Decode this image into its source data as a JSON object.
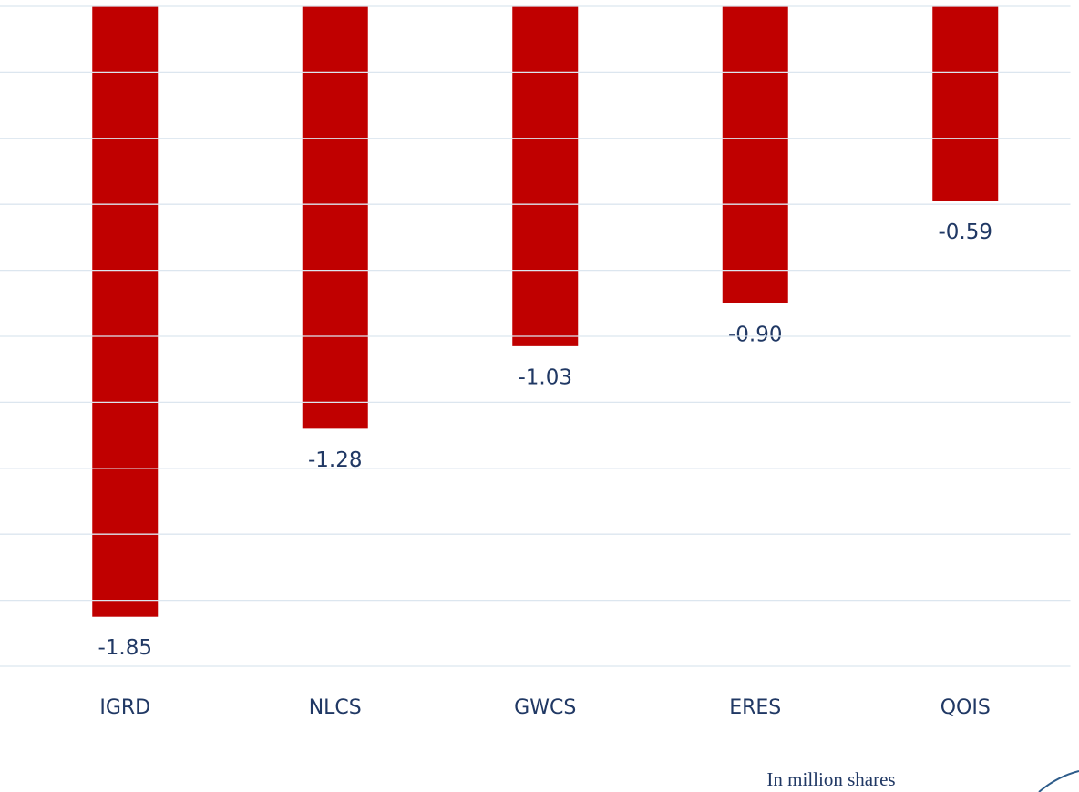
{
  "chart_data": {
    "type": "bar",
    "categories": [
      "IGRD",
      "NLCS",
      "GWCS",
      "ERES",
      "QOIS"
    ],
    "values": [
      -1.85,
      -1.28,
      -1.03,
      -0.9,
      -0.59
    ],
    "value_labels": [
      "-1.85",
      "-1.28",
      "-1.03",
      "-0.90",
      "-0.59"
    ],
    "color": "#c00000",
    "ylim": [
      -2,
      0
    ],
    "yticks": [
      0,
      -0.2,
      -0.4,
      -0.6,
      -0.8,
      -1,
      -1.2,
      -1.4,
      -1.6,
      -1.8,
      -2
    ],
    "grid": true,
    "annotation": "In million shares"
  }
}
